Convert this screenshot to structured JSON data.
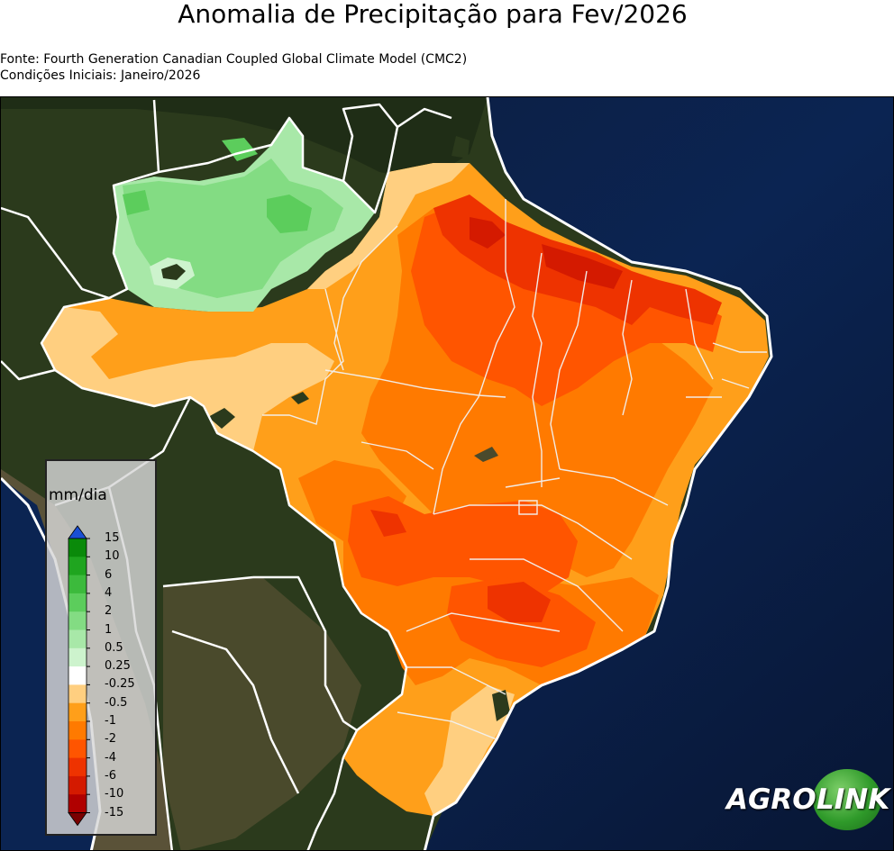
{
  "title": "Anomalia de Precipitação para Fev/2026",
  "source": "Fonte: Fourth Generation Canadian Coupled Global Climate Model (CMC2)",
  "initial_conditions": "Condições Iniciais: Janeiro/2026",
  "legend": {
    "unit": "mm/dia",
    "ticks": [
      "15",
      "10",
      "6",
      "4",
      "2",
      "1",
      "0.5",
      "0.25",
      "-0.25",
      "-0.5",
      "-1",
      "-2",
      "-4",
      "-6",
      "-10",
      "-15"
    ],
    "colors": [
      "#0a8a0a",
      "#1fa51f",
      "#3cba3c",
      "#5ccd5c",
      "#83dc83",
      "#a8e8a8",
      "#cdf3cd",
      "#ffffff",
      "#ffcf80",
      "#ff9f1a",
      "#ff7a00",
      "#ff5500",
      "#ee3300",
      "#d41a00",
      "#b00000"
    ],
    "top_arrow_color": "#1a4fd4",
    "bottom_arrow_color": "#7a0000"
  },
  "logo": {
    "part1": "AGRO",
    "part2": "LINK"
  }
}
